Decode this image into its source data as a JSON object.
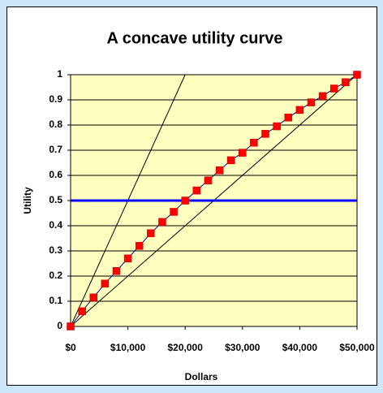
{
  "chart_data": {
    "type": "line",
    "title": "A concave utility curve",
    "x_label": "Dollars",
    "y_label": "Utility",
    "series": [
      {
        "x": [
          0,
          20000
        ],
        "values": [
          0,
          1
        ],
        "color": "#000000",
        "line_style": "thin"
      },
      {
        "x": [
          0,
          50000
        ],
        "values": [
          0,
          1
        ],
        "color": "#000000",
        "line_style": "thin"
      },
      {
        "x": [
          0,
          50000
        ],
        "values": [
          0.5,
          0.5
        ],
        "color": "#0000ff",
        "line_style": "thick"
      },
      {
        "x": [
          0,
          2000,
          4000,
          6000,
          8000,
          10000,
          12000,
          14000,
          16000,
          18000,
          20000,
          22000,
          24000,
          26000,
          28000,
          30000,
          32000,
          34000,
          36000,
          38000,
          40000,
          42000,
          44000,
          46000,
          48000,
          50000
        ],
        "values": [
          0,
          0.06,
          0.115,
          0.17,
          0.22,
          0.27,
          0.32,
          0.37,
          0.415,
          0.455,
          0.5,
          0.54,
          0.58,
          0.62,
          0.66,
          0.69,
          0.73,
          0.765,
          0.795,
          0.83,
          0.86,
          0.89,
          0.915,
          0.945,
          0.97,
          1
        ],
        "color": "#ff0000",
        "line_color": "#000080",
        "line_style": "thin",
        "marker": "square"
      }
    ],
    "xlim": [
      0,
      50000
    ],
    "xticks": [
      {
        "value": 0,
        "label": "$0"
      },
      {
        "value": 10000,
        "label": "$10,000"
      },
      {
        "value": 20000,
        "label": "$20,000"
      },
      {
        "value": 30000,
        "label": "$30,000"
      },
      {
        "value": 40000,
        "label": "$40,000"
      },
      {
        "value": 50000,
        "label": "$50,000"
      }
    ],
    "ylim": [
      0,
      1
    ],
    "yticks": [
      0,
      0.1,
      0.2,
      0.3,
      0.4,
      0.5,
      0.6,
      0.7,
      0.8,
      0.9,
      1
    ],
    "grid": true,
    "plot_background": "#ffffc0"
  }
}
